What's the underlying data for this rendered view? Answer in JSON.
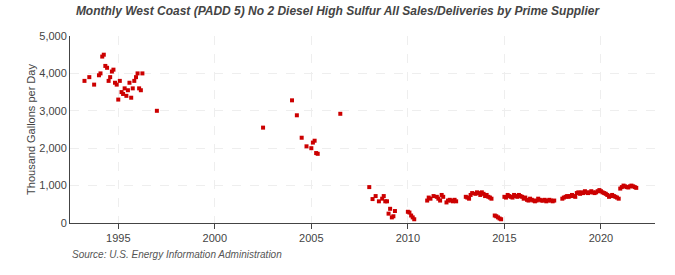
{
  "chart_data": {
    "type": "scatter",
    "title": "Monthly West Coast (PADD 5) No 2 Diesel High Sulfur All Sales/Deliveries by Prime Supplier",
    "ylabel": "Thousand Gallons per Day",
    "annotations": [
      "Source: U.S. Energy Information Administration"
    ],
    "color": "#cc0000",
    "marker": "square",
    "grid": true,
    "xlim": [
      1992.5,
      2022.8
    ],
    "xticks": [
      1995,
      2000,
      2005,
      2010,
      2015,
      2020
    ],
    "ylim": [
      0,
      5000
    ],
    "yticks": [
      0,
      {
        "value": 1000,
        "label": "1,000"
      },
      {
        "value": 2000,
        "label": "2,000"
      },
      {
        "value": 3000,
        "label": "3,000"
      },
      {
        "value": 4000,
        "label": "4,000"
      },
      {
        "value": 5000,
        "label": "5,000"
      }
    ],
    "x": [
      1993.25,
      1993.5,
      1993.75,
      1994.0,
      1994.08,
      1994.17,
      1994.25,
      1994.33,
      1994.42,
      1994.5,
      1994.58,
      1994.67,
      1994.75,
      1994.83,
      1994.92,
      1995.0,
      1995.08,
      1995.17,
      1995.25,
      1995.33,
      1995.42,
      1995.5,
      1995.58,
      1995.67,
      1995.75,
      1995.83,
      1995.92,
      1996.0,
      1996.08,
      1996.17,
      1996.25,
      1997.0,
      2002.5,
      2004.0,
      2004.25,
      2004.5,
      2004.75,
      2005.0,
      2005.08,
      2005.17,
      2005.25,
      2005.33,
      2006.5,
      2008.0,
      2008.17,
      2008.33,
      2008.5,
      2008.67,
      2008.75,
      2008.83,
      2008.92,
      2009.0,
      2009.08,
      2009.17,
      2009.25,
      2009.33,
      2010.0,
      2010.08,
      2010.17,
      2010.25,
      2010.33,
      2011.0,
      2011.08,
      2011.17,
      2011.33,
      2011.5,
      2011.58,
      2011.67,
      2011.75,
      2011.83,
      2012.0,
      2012.08,
      2012.17,
      2012.25,
      2012.33,
      2012.42,
      2012.5,
      2013.0,
      2013.08,
      2013.17,
      2013.25,
      2013.33,
      2013.5,
      2013.58,
      2013.67,
      2013.75,
      2013.83,
      2013.92,
      2014.0,
      2014.08,
      2014.17,
      2014.25,
      2014.33,
      2014.5,
      2014.58,
      2014.67,
      2014.75,
      2014.83,
      2015.0,
      2015.08,
      2015.17,
      2015.25,
      2015.33,
      2015.42,
      2015.5,
      2015.58,
      2015.67,
      2015.75,
      2015.83,
      2015.92,
      2016.0,
      2016.08,
      2016.17,
      2016.25,
      2016.33,
      2016.42,
      2016.5,
      2016.58,
      2016.67,
      2016.75,
      2016.83,
      2016.92,
      2017.0,
      2017.08,
      2017.17,
      2017.25,
      2017.33,
      2017.42,
      2017.5,
      2017.58,
      2018.0,
      2018.08,
      2018.17,
      2018.25,
      2018.33,
      2018.42,
      2018.5,
      2018.58,
      2018.67,
      2018.75,
      2018.83,
      2018.92,
      2019.0,
      2019.08,
      2019.17,
      2019.25,
      2019.33,
      2019.42,
      2019.5,
      2019.58,
      2019.67,
      2019.75,
      2019.83,
      2019.92,
      2020.0,
      2020.08,
      2020.17,
      2020.25,
      2020.33,
      2020.42,
      2020.5,
      2020.58,
      2020.67,
      2020.75,
      2020.83,
      2020.92,
      2021.0,
      2021.08,
      2021.17,
      2021.25,
      2021.33,
      2021.42,
      2021.5,
      2021.58,
      2021.67,
      2021.75,
      2021.83
    ],
    "values": [
      3800,
      3900,
      3700,
      3950,
      4000,
      4450,
      4500,
      4200,
      4150,
      3800,
      3900,
      4050,
      4100,
      3750,
      3700,
      3300,
      3800,
      3500,
      3450,
      3600,
      3400,
      3550,
      3750,
      3350,
      3600,
      3800,
      3900,
      4000,
      3600,
      3550,
      4000,
      3000,
      2550,
      3280,
      2880,
      2280,
      2050,
      2000,
      2150,
      2200,
      1870,
      1850,
      2920,
      960,
      640,
      720,
      580,
      650,
      720,
      580,
      580,
      250,
      380,
      150,
      180,
      320,
      300,
      280,
      200,
      150,
      100,
      600,
      680,
      650,
      720,
      700,
      650,
      600,
      750,
      700,
      550,
      600,
      620,
      600,
      580,
      620,
      580,
      700,
      680,
      650,
      750,
      800,
      780,
      820,
      800,
      750,
      820,
      780,
      720,
      750,
      700,
      680,
      650,
      200,
      180,
      150,
      120,
      100,
      700,
      680,
      750,
      720,
      700,
      680,
      750,
      720,
      700,
      750,
      720,
      700,
      650,
      680,
      620,
      600,
      650,
      620,
      600,
      580,
      600,
      650,
      620,
      600,
      600,
      620,
      580,
      600,
      620,
      600,
      580,
      600,
      650,
      680,
      700,
      720,
      700,
      720,
      750,
      720,
      700,
      800,
      820,
      780,
      820,
      800,
      850,
      820,
      800,
      820,
      850,
      820,
      800,
      820,
      850,
      880,
      850,
      820,
      800,
      780,
      750,
      700,
      720,
      750,
      720,
      700,
      680,
      650,
      920,
      960,
      1000,
      980,
      960,
      950,
      980,
      1000,
      980,
      960,
      940
    ]
  }
}
